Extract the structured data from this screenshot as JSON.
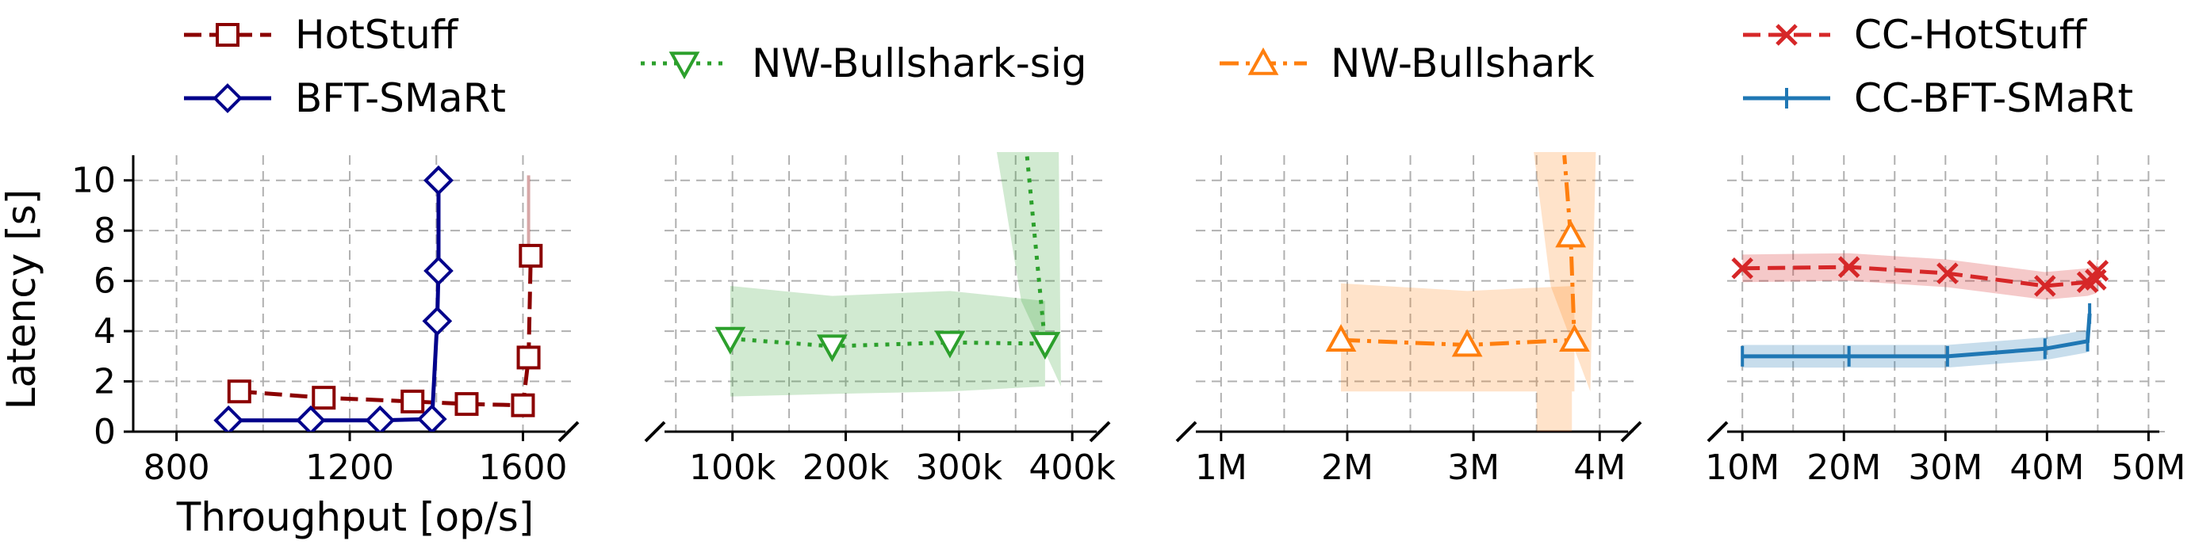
{
  "figure": {
    "ylabel": "Latency [s]",
    "xlabel": "Throughput [op/s]"
  },
  "legend": [
    {
      "name": "HotStuff",
      "color": "#8b0000",
      "marker": "square",
      "dash": "dashed"
    },
    {
      "name": "BFT-SMaRt",
      "color": "#00008b",
      "marker": "diamond",
      "dash": "solid"
    },
    {
      "name": "NW-Bullshark-sig",
      "color": "#2ca02c",
      "marker": "triangle-down",
      "dash": "dotted"
    },
    {
      "name": "NW-Bullshark",
      "color": "#ff7f0e",
      "marker": "triangle-up",
      "dash": "dashdot"
    },
    {
      "name": "CC-HotStuff",
      "color": "#d62728",
      "marker": "x",
      "dash": "dashed"
    },
    {
      "name": "CC-BFT-SMaRt",
      "color": "#1f77b4",
      "marker": "plus",
      "dash": "solid"
    }
  ],
  "chart_data": [
    {
      "type": "line",
      "xlabel": "Throughput [op/s]",
      "ylabel": "Latency [s]",
      "xlim": [
        700,
        1720
      ],
      "ylim": [
        0,
        11
      ],
      "xticks": [
        800,
        1200,
        1600
      ],
      "xtick_labels": [
        "800",
        "1200",
        "1600"
      ],
      "yticks": [
        0,
        2,
        4,
        6,
        8,
        10
      ],
      "ytick_labels": [
        "0",
        "2",
        "4",
        "6",
        "8",
        "10"
      ],
      "grid": true,
      "series": [
        {
          "name": "HotStuff",
          "x": [
            945,
            1140,
            1345,
            1470,
            1600,
            1613,
            1618
          ],
          "y": [
            1.6,
            1.35,
            1.2,
            1.1,
            1.05,
            2.95,
            7.0
          ],
          "band_upper": [
            10.2
          ],
          "band_x": [
            1613
          ]
        },
        {
          "name": "BFT-SMaRt",
          "x": [
            920,
            1110,
            1270,
            1390,
            1402,
            1405,
            1405,
            1405
          ],
          "y": [
            0.45,
            0.45,
            0.45,
            0.5,
            4.4,
            6.4,
            10.0,
            10.0
          ]
        }
      ]
    },
    {
      "type": "line",
      "xlim": [
        40000,
        430000
      ],
      "ylim": [
        0,
        11
      ],
      "xticks": [
        100000,
        200000,
        300000,
        400000
      ],
      "xtick_labels": [
        "100k",
        "200k",
        "300k",
        "400k"
      ],
      "grid": true,
      "series": [
        {
          "name": "NW-Bullshark-sig",
          "x": [
            98000,
            188000,
            292000,
            376000,
            360000
          ],
          "y": [
            3.7,
            3.4,
            3.55,
            3.5,
            11.0
          ],
          "band_lower": [
            1.4,
            1.5,
            1.6,
            1.8
          ],
          "band_upper": [
            5.8,
            5.4,
            5.6,
            5.2
          ]
        }
      ]
    },
    {
      "type": "line",
      "xlim": [
        800000,
        4300000
      ],
      "ylim": [
        0,
        11
      ],
      "xticks": [
        1000000,
        2000000,
        3000000,
        4000000
      ],
      "xtick_labels": [
        "1M",
        "2M",
        "3M",
        "4M"
      ],
      "grid": true,
      "series": [
        {
          "name": "NW-Bullshark",
          "x": [
            1950000,
            2950000,
            3800000,
            3770000,
            3720000
          ],
          "y": [
            3.65,
            3.45,
            3.65,
            7.8,
            11.0
          ],
          "band_lower": [
            1.6,
            1.6,
            1.6
          ],
          "band_upper": [
            5.9,
            5.6,
            5.8
          ]
        }
      ]
    },
    {
      "type": "line",
      "xlim": [
        8500000,
        52000000
      ],
      "ylim": [
        0,
        11
      ],
      "xticks": [
        10000000,
        20000000,
        30000000,
        40000000,
        50000000
      ],
      "xtick_labels": [
        "10M",
        "20M",
        "30M",
        "40M",
        "50M"
      ],
      "grid": true,
      "series": [
        {
          "name": "CC-HotStuff",
          "x": [
            10000000,
            20500000,
            30200000,
            39800000,
            44000000,
            44800000,
            45000000
          ],
          "y": [
            6.5,
            6.55,
            6.3,
            5.8,
            5.95,
            6.05,
            6.4
          ],
          "band_halfwidth": 0.55
        },
        {
          "name": "CC-BFT-SMaRt",
          "x": [
            10000000,
            20500000,
            30200000,
            39800000,
            44000000,
            44200000
          ],
          "y": [
            3.0,
            3.0,
            3.0,
            3.3,
            3.6,
            4.7
          ],
          "band_halfwidth": 0.45
        }
      ]
    }
  ]
}
